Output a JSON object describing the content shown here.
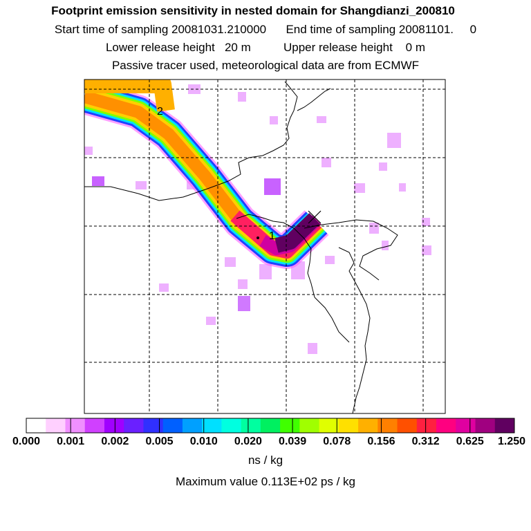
{
  "titles": {
    "line1": "Footprint emission sensitivity in nested domain for Shangdianzi_200810",
    "line2": "Start time of sampling 20081031.210000      End time of sampling 20081101.     0",
    "line3": "Lower release height   20 m          Upper release height    0 m",
    "line4": "Passive tracer used, meteorological data are from ECMWF"
  },
  "chart_data": {
    "type": "heatmap",
    "title": "Footprint emission sensitivity in nested domain for Shangdianzi_200810",
    "colorbar": {
      "tick_labels": [
        "0.000",
        "0.001",
        "0.002",
        "0.005",
        "0.010",
        "0.020",
        "0.039",
        "0.078",
        "0.156",
        "0.312",
        "0.625",
        "1.250"
      ],
      "unit": "ns / kg",
      "colors": [
        "#ffffff",
        "#ffd0ff",
        "#f090ff",
        "#d040ff",
        "#a000ff",
        "#6a20ff",
        "#3030ff",
        "#0060ff",
        "#00a0ff",
        "#00e0ff",
        "#00ffe0",
        "#00ffa0",
        "#00f060",
        "#40ff00",
        "#a0ff00",
        "#e0ff00",
        "#ffe000",
        "#ffb000",
        "#ff8000",
        "#ff5000",
        "#ff2040",
        "#ff0080",
        "#e000a0",
        "#a00080",
        "#600060"
      ]
    },
    "markers": [
      "1",
      "2"
    ],
    "max_value": "Maximum value  0.113E+02 ps / kg",
    "plume": "Footprint extends from the receptor (marker 1) toward the northwest (marker 2)"
  }
}
